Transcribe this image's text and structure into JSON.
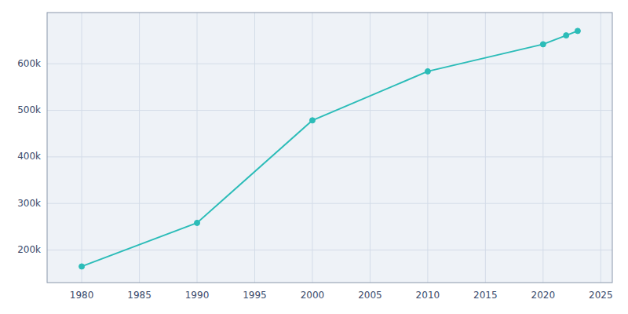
{
  "chart_data": {
    "type": "line",
    "x": [
      1980,
      1990,
      2000,
      2010,
      2020,
      2022,
      2023
    ],
    "values": [
      164674,
      258295,
      478434,
      583756,
      641903,
      660929,
      670588
    ],
    "color": "#2bbcb8",
    "marker": "circle",
    "xlim": [
      1977,
      2026
    ],
    "ylim": [
      130000,
      710000
    ],
    "xticks": [
      1980,
      1985,
      1990,
      1995,
      2000,
      2005,
      2010,
      2015,
      2020,
      2025
    ],
    "yticks": [
      {
        "value": 200000,
        "label": "200k"
      },
      {
        "value": 300000,
        "label": "300k"
      },
      {
        "value": 400000,
        "label": "400k"
      },
      {
        "value": 500000,
        "label": "500k"
      },
      {
        "value": 600000,
        "label": "600k"
      }
    ],
    "grid": true
  }
}
